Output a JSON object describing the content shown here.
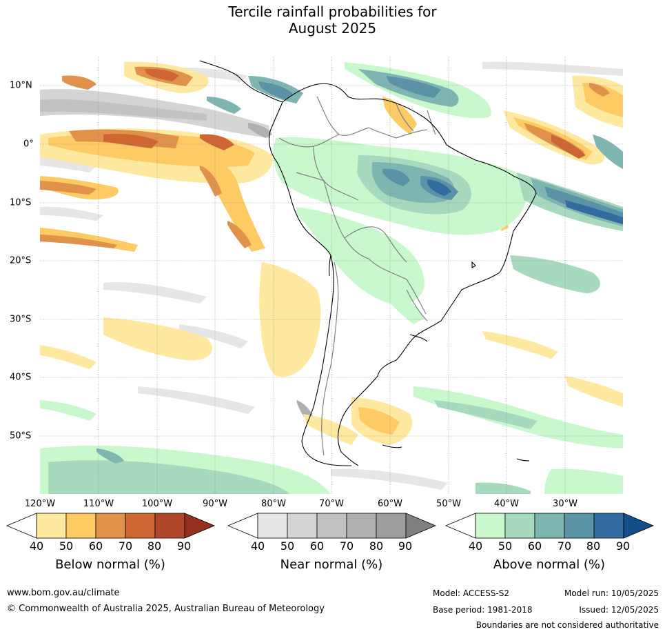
{
  "title": {
    "line1": "Tercile rainfall probabilities for",
    "line2": "August 2025"
  },
  "axes": {
    "lat_labels": [
      "10°N",
      "0°",
      "10°S",
      "20°S",
      "30°S",
      "40°S",
      "50°S"
    ],
    "lon_labels": [
      "120°W",
      "110°W",
      "100°W",
      "90°W",
      "80°W",
      "70°W",
      "60°W",
      "50°W",
      "40°W",
      "30°W"
    ]
  },
  "colorbars": [
    {
      "label": "Below normal (%)",
      "ticks": [
        "40",
        "50",
        "60",
        "70",
        "80",
        "90"
      ],
      "colors": [
        "#ffffff",
        "#ffe9a0",
        "#fdca63",
        "#e0914a",
        "#cd6633",
        "#b0472a",
        "#94301f"
      ]
    },
    {
      "label": "Near normal (%)",
      "ticks": [
        "40",
        "50",
        "60",
        "70",
        "80",
        "90"
      ],
      "colors": [
        "#ffffff",
        "#e6e6e6",
        "#d4d4d4",
        "#c2c2c2",
        "#b0b0b0",
        "#9e9e9e",
        "#7f7f7f"
      ]
    },
    {
      "label": "Above normal (%)",
      "ticks": [
        "40",
        "50",
        "60",
        "70",
        "80",
        "90"
      ],
      "colors": [
        "#ffffff",
        "#c8f8cc",
        "#a6d9bd",
        "#7fb5b1",
        "#5a93a5",
        "#336aa0",
        "#134e8a"
      ]
    }
  ],
  "footer": {
    "website": "www.bom.gov.au/climate",
    "copyright": "© Commonwealth of Australia 2025, Australian Bureau of Meteorology",
    "model": "Model: ACCESS-S2",
    "base_period": "Base period: 1981-2018",
    "model_run": "Model run: 10/05/2025",
    "issued": "Issued: 12/05/2025",
    "disclaimer": "Boundaries are not considered authoritative"
  }
}
